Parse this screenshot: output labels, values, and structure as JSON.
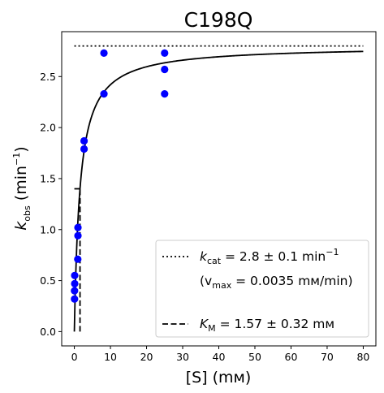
{
  "chart_data": {
    "type": "scatter",
    "title": "C198Q",
    "xlabel": "[S] (mм)",
    "ylabel": {
      "main": "k",
      "sub": "obs",
      "unit_pre": "(min",
      "unit_sup": "−1",
      "unit_post": ")"
    },
    "xlim": [
      -3.5,
      83.5
    ],
    "ylim": [
      -0.14,
      2.94
    ],
    "x_ticks": [
      0,
      10,
      20,
      30,
      40,
      50,
      60,
      70,
      80
    ],
    "y_ticks": [
      0.0,
      0.5,
      1.0,
      1.5,
      2.0,
      2.5
    ],
    "x_tick_labels": [
      "0",
      "10",
      "20",
      "30",
      "40",
      "50",
      "60",
      "70",
      "80"
    ],
    "y_tick_labels": [
      "0.0",
      "0.5",
      "1.0",
      "1.5",
      "2.0",
      "2.5"
    ],
    "grid": false,
    "legend_position": "bottom-right",
    "series": [
      {
        "kind": "points",
        "color": "#0000ff",
        "points": [
          {
            "x": 0.05,
            "y": 0.32
          },
          {
            "x": 0.05,
            "y": 0.4
          },
          {
            "x": 0.1,
            "y": 0.47
          },
          {
            "x": 0.1,
            "y": 0.55
          },
          {
            "x": 0.95,
            "y": 0.71
          },
          {
            "x": 1.0,
            "y": 0.94
          },
          {
            "x": 1.0,
            "y": 1.02
          },
          {
            "x": 2.7,
            "y": 1.79
          },
          {
            "x": 2.7,
            "y": 1.87
          },
          {
            "x": 8.2,
            "y": 2.33
          },
          {
            "x": 8.2,
            "y": 2.73
          },
          {
            "x": 25.0,
            "y": 2.33
          },
          {
            "x": 25.0,
            "y": 2.57
          },
          {
            "x": 25.0,
            "y": 2.73
          }
        ]
      },
      {
        "kind": "fit-curve",
        "color": "#000000",
        "kcat": 2.8,
        "km": 1.57,
        "x_range": [
          0,
          80
        ]
      },
      {
        "kind": "kcat-line",
        "color": "#000000",
        "style": "dotted",
        "y": 2.8,
        "x_range": [
          0,
          80
        ]
      },
      {
        "kind": "km-line",
        "color": "#000000",
        "style": "dashed",
        "x": 1.57,
        "y_range": [
          0,
          1.4
        ],
        "tick_x_range": [
          0,
          1.57
        ]
      }
    ],
    "legend": [
      {
        "style": "dotted",
        "label_main": "k",
        "label_sub": "cat",
        "label_rest": " = 2.8 ± 0.1 min",
        "label_sup": "−1"
      },
      {
        "style": "none",
        "label_pre": "(v",
        "label_sub": "max",
        "label_rest": " = 0.0035 mм/min)"
      },
      {
        "style": "dashed",
        "label_main": "K",
        "label_sub": "M",
        "label_rest": " = 1.57 ± 0.32 mм"
      }
    ]
  }
}
